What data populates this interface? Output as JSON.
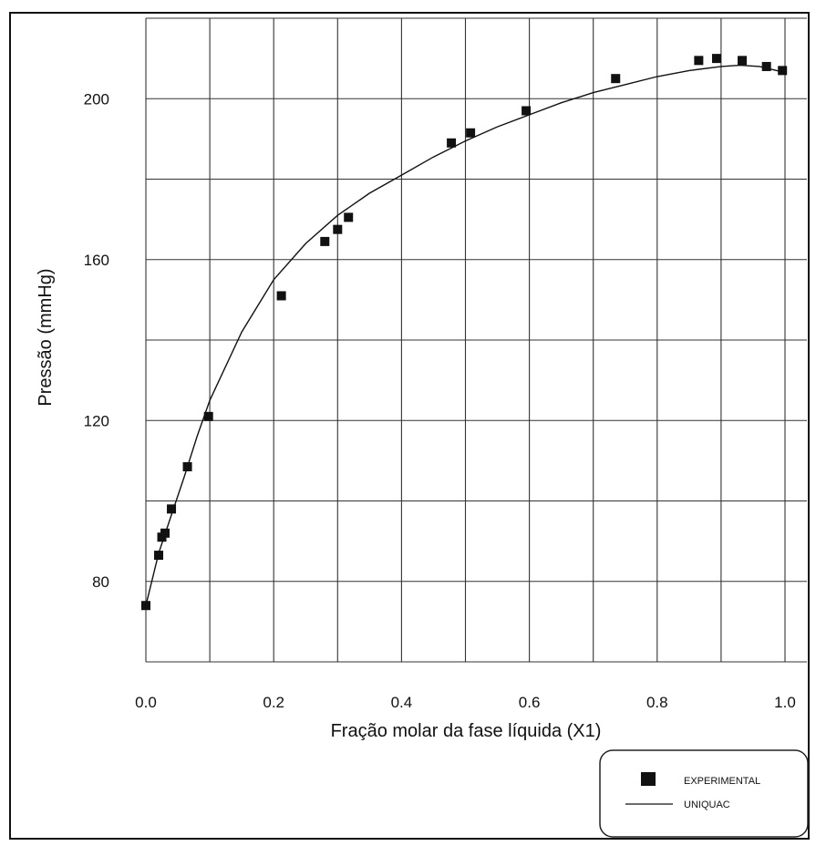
{
  "chart_data": {
    "type": "scatter",
    "xlabel": "Fração molar da fase líquida (X1)",
    "ylabel": "Pressão (mmHg)",
    "xlim": [
      0.0,
      1.0
    ],
    "ylim": [
      60,
      220
    ],
    "x_ticks": [
      0.0,
      0.2,
      0.4,
      0.6,
      0.8,
      1.0
    ],
    "x_tick_labels": [
      "0.0",
      "0.2",
      "0.4",
      "0.6",
      "0.8",
      "1.0"
    ],
    "y_ticks": [
      80,
      120,
      160,
      200
    ],
    "y_tick_labels": [
      "80",
      "120",
      "160",
      "200"
    ],
    "x_gridlines": [
      0.0,
      0.1,
      0.2,
      0.3,
      0.4,
      0.5,
      0.6,
      0.7,
      0.8,
      0.9,
      1.0
    ],
    "y_gridlines": [
      60,
      80,
      100,
      120,
      140,
      160,
      180,
      200,
      220
    ],
    "grid": true,
    "legend_position": "bottom-right",
    "series": [
      {
        "name": "EXPERIMENTAL",
        "kind": "scatter",
        "marker": "square",
        "x": [
          0.0,
          0.02,
          0.025,
          0.03,
          0.04,
          0.065,
          0.098,
          0.212,
          0.28,
          0.3,
          0.317,
          0.478,
          0.508,
          0.595,
          0.735,
          0.865,
          0.893,
          0.933,
          0.971,
          0.996
        ],
        "y": [
          74,
          86.5,
          91,
          92,
          98,
          108.5,
          121,
          151,
          164.5,
          167.5,
          170.5,
          189,
          191.5,
          197,
          205,
          209.5,
          210,
          209.5,
          208,
          207
        ]
      },
      {
        "name": "UNIQUAC",
        "kind": "line",
        "x": [
          0.0,
          0.02,
          0.04,
          0.06,
          0.08,
          0.1,
          0.15,
          0.2,
          0.25,
          0.3,
          0.35,
          0.4,
          0.45,
          0.5,
          0.55,
          0.6,
          0.65,
          0.7,
          0.75,
          0.8,
          0.85,
          0.9,
          0.93,
          0.96,
          1.0
        ],
        "y": [
          74,
          87,
          96.5,
          106,
          116,
          125,
          142,
          155,
          164,
          171,
          176.5,
          181,
          185.5,
          189.5,
          193,
          196,
          199,
          201.5,
          203.5,
          205.5,
          207,
          208,
          208.3,
          208,
          206.5
        ]
      }
    ]
  }
}
